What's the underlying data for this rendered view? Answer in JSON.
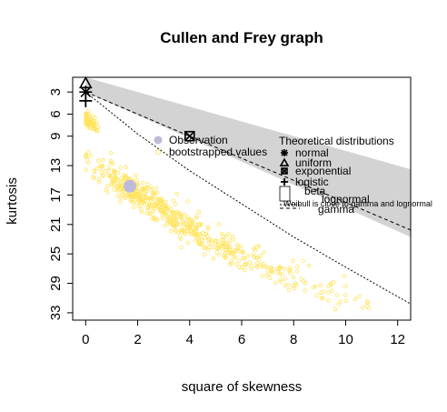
{
  "chart_data": {
    "type": "scatter",
    "title": "Cullen and Frey graph",
    "xlabel": "square of skewness",
    "ylabel": "kurtosis",
    "xlim": [
      -0.5,
      12.5
    ],
    "ylim": [
      34,
      1
    ],
    "y_reversed": true,
    "xticks": [
      0,
      2,
      4,
      6,
      8,
      10,
      12
    ],
    "yticks": [
      3,
      6,
      9,
      13,
      17,
      21,
      25,
      29,
      33
    ],
    "grid": false,
    "colors": {
      "observation": "#bebada",
      "bootstrap": "#ffe45e",
      "region": "#d3d3d3",
      "beta_box": "#ffffff"
    },
    "observation": {
      "name": "Observation",
      "x": 1.7,
      "y": 15.8
    },
    "bootstrap": {
      "name": "bootstrapped values",
      "clusters": [
        {
          "x_center": 0.15,
          "x_spread": 0.18,
          "y_center": 7.0,
          "y_spread": 1.0,
          "count": 70
        },
        {
          "x_center": 1.9,
          "x_spread": 0.9,
          "y_center": 16.5,
          "y_spread": 2.0,
          "count": 260
        },
        {
          "x_center": 4.2,
          "x_spread": 1.2,
          "y_center": 22.0,
          "y_spread": 1.9,
          "count": 200
        },
        {
          "x_center": 7.0,
          "x_spread": 1.6,
          "y_center": 26.5,
          "y_spread": 2.2,
          "count": 110
        },
        {
          "x_center": 10.2,
          "x_spread": 1.3,
          "y_center": 30.8,
          "y_spread": 1.6,
          "count": 20
        }
      ],
      "slope": 1.95
    },
    "theoretical": {
      "title": "Theoretical distributions",
      "normal": {
        "label": "normal",
        "x": 0,
        "y": 3
      },
      "uniform": {
        "label": "uniform",
        "x": 0,
        "y": 1.8
      },
      "exponential": {
        "label": "exponential",
        "x": 4,
        "y": 9
      },
      "logistic": {
        "label": "logistic",
        "x": 0,
        "y": 4.2
      },
      "beta": {
        "label": "beta",
        "region_upper": [
          [
            0,
            1
          ],
          [
            12.5,
            13.5
          ]
        ],
        "region_lower": [
          [
            0,
            3
          ],
          [
            12.5,
            22.7
          ]
        ]
      },
      "lognormal": {
        "label": "lognormal"
      },
      "gamma": {
        "label": "gamma",
        "line": [
          [
            0,
            3
          ],
          [
            12.5,
            21.75
          ]
        ]
      },
      "weibull_overlay": "Weibull is close to gamma and lognormal",
      "lognormal_curve": [
        [
          0,
          3
        ],
        [
          2,
          8.7
        ],
        [
          4,
          13.7
        ],
        [
          6,
          18.2
        ],
        [
          8,
          22.7
        ],
        [
          10,
          26.8
        ],
        [
          12.5,
          31.8
        ]
      ]
    }
  }
}
